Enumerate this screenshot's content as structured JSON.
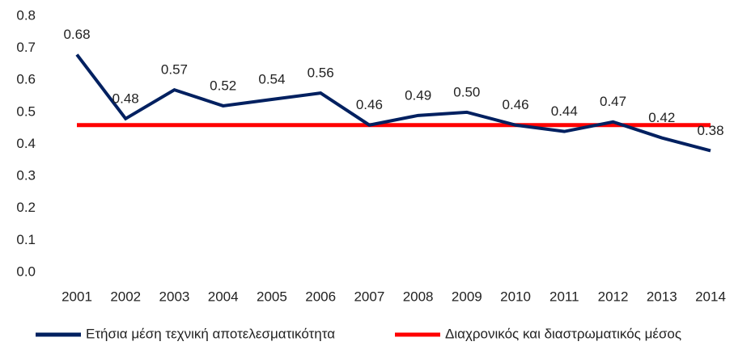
{
  "chart_data": {
    "type": "line",
    "categories": [
      "2001",
      "2002",
      "2003",
      "2004",
      "2005",
      "2006",
      "2007",
      "2008",
      "2009",
      "2010",
      "2011",
      "2012",
      "2013",
      "2014"
    ],
    "series": [
      {
        "name": "Ετήσια μέση τεχνική αποτελεσματικότητα",
        "color": "#002060",
        "values": [
          0.68,
          0.48,
          0.57,
          0.52,
          0.54,
          0.56,
          0.46,
          0.49,
          0.5,
          0.46,
          0.44,
          0.47,
          0.42,
          0.38
        ],
        "value_labels": [
          "0.68",
          "0.48",
          "0.57",
          "0.52",
          "0.54",
          "0.56",
          "0.46",
          "0.49",
          "0.50",
          "0.46",
          "0.44",
          "0.47",
          "0.42",
          "0.38"
        ]
      },
      {
        "name": "Διαχρονικός και διαστρωματικός μέσος",
        "color": "#ff0000",
        "values": [
          0.46,
          0.46,
          0.46,
          0.46,
          0.46,
          0.46,
          0.46,
          0.46,
          0.46,
          0.46,
          0.46,
          0.46,
          0.46,
          0.46
        ]
      }
    ],
    "ylim": [
      0,
      0.8
    ],
    "yticks": [
      {
        "value": 0,
        "label": "0.0"
      },
      0.1,
      0.2,
      0.3,
      0.4,
      0.5,
      0.6,
      0.7,
      0.8
    ],
    "grid": false,
    "legend": "bottom"
  }
}
